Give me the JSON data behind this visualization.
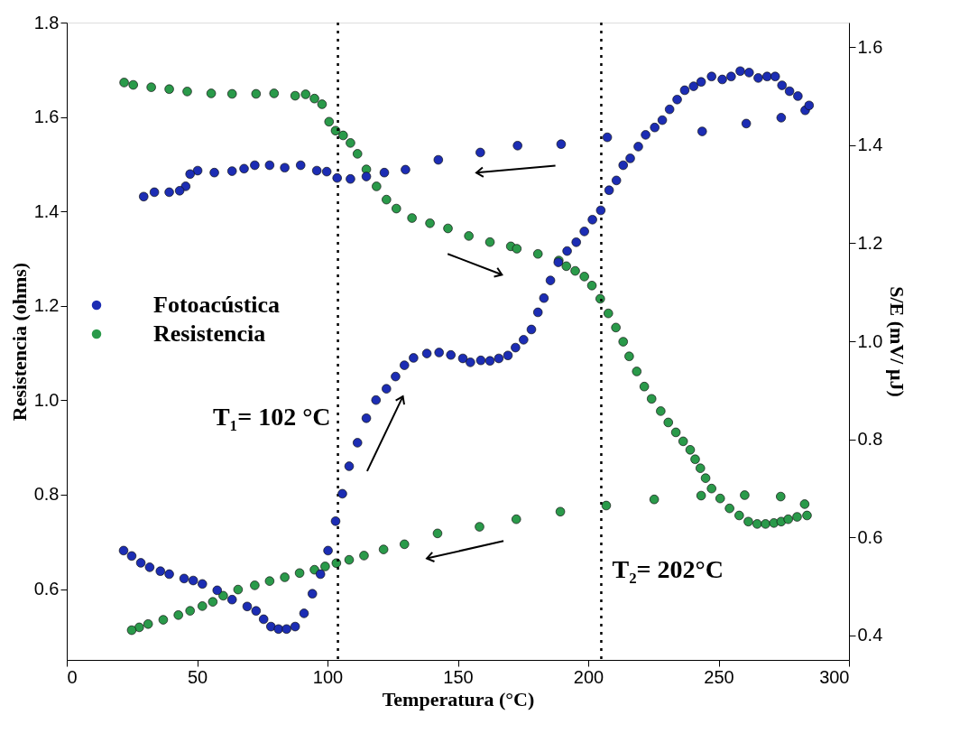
{
  "chart_data": {
    "type": "scatter",
    "xlabel": "Temperatura (°C)",
    "ylabel": "Resistencia (ohms)",
    "y2label": "S/E (mV/ μJ)",
    "xlim": [
      0,
      300
    ],
    "xticks": [
      0,
      50,
      100,
      150,
      200,
      250,
      300
    ],
    "ylim": [
      0.45,
      1.8
    ],
    "yticks": [
      0.6,
      0.8,
      {
        "value": 1,
        "label": "1.0"
      },
      1.2,
      1.4,
      1.6,
      1.8
    ],
    "y2lim": [
      0.35,
      1.65
    ],
    "y2ticks": [
      0.4,
      0.6,
      0.8,
      {
        "value": 1,
        "label": "1.0"
      },
      1.2,
      1.4,
      1.6
    ],
    "grid": false,
    "legend": "left",
    "marker": "circle",
    "series": [
      {
        "name": "Fotoacústica",
        "color": "#1c2db4",
        "axis": "y2",
        "x": [
          21.8,
          24.9,
          28.4,
          31.8,
          35.9,
          39.3,
          45.0,
          48.5,
          52.0,
          57.7,
          63.4,
          69.2,
          72.6,
          75.5,
          78.3,
          81.2,
          84.3,
          87.6,
          91.0,
          94.2,
          97.3,
          100.2,
          103.1,
          105.7,
          108.3,
          111.5,
          114.9,
          118.6,
          122.6,
          126.1,
          129.5,
          133.0,
          138.1,
          142.8,
          147.3,
          151.9,
          154.8,
          158.8,
          162.3,
          165.7,
          169.2,
          172.1,
          175.2,
          178.2,
          180.7,
          183.0,
          185.5,
          188.5,
          191.9,
          195.4,
          198.5,
          201.6,
          204.8,
          208.0,
          210.8,
          213.4,
          216.1,
          219.2,
          222.0,
          225.5,
          228.4,
          231.2,
          234.1,
          237.0,
          240.4,
          243.3,
          247.3,
          251.4,
          254.8,
          258.3,
          261.7,
          265.2,
          268.6,
          271.7,
          274.3,
          277.2,
          280.4,
          283.2,
          284.7,
          274.0,
          260.6,
          243.7,
          207.3,
          189.6,
          172.9,
          158.6,
          142.5,
          129.9,
          121.8,
          114.9,
          108.8,
          103.7,
          99.7,
          95.9,
          89.7,
          83.6,
          77.8,
          72.1,
          68.0,
          63.4,
          56.6,
          50.2,
          47.3,
          45.6,
          43.3,
          39.3,
          33.6,
          29.5
        ],
        "values": [
          0.573,
          0.562,
          0.548,
          0.539,
          0.531,
          0.525,
          0.516,
          0.512,
          0.505,
          0.492,
          0.473,
          0.459,
          0.45,
          0.433,
          0.418,
          0.413,
          0.413,
          0.418,
          0.445,
          0.485,
          0.525,
          0.573,
          0.633,
          0.689,
          0.745,
          0.793,
          0.843,
          0.88,
          0.903,
          0.928,
          0.951,
          0.966,
          0.975,
          0.977,
          0.972,
          0.965,
          0.957,
          0.961,
          0.96,
          0.965,
          0.971,
          0.987,
          1.003,
          1.024,
          1.059,
          1.088,
          1.124,
          1.161,
          1.184,
          1.202,
          1.224,
          1.248,
          1.267,
          1.308,
          1.328,
          1.359,
          1.373,
          1.397,
          1.421,
          1.436,
          1.451,
          1.473,
          1.493,
          1.512,
          1.52,
          1.529,
          1.54,
          1.534,
          1.54,
          1.551,
          1.548,
          1.537,
          1.54,
          1.54,
          1.522,
          1.51,
          1.5,
          1.471,
          1.481,
          1.456,
          1.444,
          1.428,
          1.416,
          1.402,
          1.399,
          1.385,
          1.37,
          1.35,
          1.344,
          1.336,
          1.331,
          1.333,
          1.346,
          1.348,
          1.359,
          1.354,
          1.359,
          1.359,
          1.352,
          1.347,
          1.344,
          1.348,
          1.341,
          1.316,
          1.307,
          1.304,
          1.304,
          1.295
        ]
      },
      {
        "name": "Resistencia",
        "color": "#2a9a4a",
        "axis": "y",
        "x": [
          22.0,
          25.5,
          32.4,
          39.3,
          46.2,
          55.4,
          63.4,
          72.6,
          79.5,
          87.6,
          91.6,
          95.0,
          97.9,
          100.6,
          103.1,
          106.0,
          108.8,
          111.5,
          114.9,
          118.8,
          122.6,
          126.4,
          132.4,
          139.3,
          146.2,
          154.2,
          162.3,
          170.3,
          172.6,
          180.7,
          188.7,
          191.6,
          195.0,
          198.5,
          201.4,
          204.6,
          207.7,
          210.6,
          213.4,
          215.7,
          218.6,
          221.5,
          224.3,
          227.8,
          230.7,
          233.6,
          236.4,
          239.1,
          241.0,
          243.0,
          245.0,
          247.3,
          250.6,
          254.2,
          257.9,
          261.4,
          264.8,
          268.0,
          271.2,
          274.0,
          276.7,
          280.1,
          283.9,
          283.0,
          273.8,
          260.0,
          243.3,
          225.3,
          206.9,
          189.3,
          172.4,
          158.3,
          142.2,
          129.5,
          121.5,
          114.0,
          108.3,
          103.4,
          99.1,
          95.0,
          89.3,
          83.6,
          77.8,
          72.1,
          65.7,
          60.0,
          56.0,
          52.0,
          47.3,
          42.8,
          37.0,
          31.2,
          27.8,
          24.9
        ],
        "values": [
          1.673,
          1.668,
          1.663,
          1.659,
          1.654,
          1.65,
          1.649,
          1.649,
          1.65,
          1.645,
          1.648,
          1.639,
          1.627,
          1.59,
          1.571,
          1.561,
          1.545,
          1.522,
          1.489,
          1.453,
          1.425,
          1.406,
          1.386,
          1.375,
          1.364,
          1.348,
          1.335,
          1.326,
          1.321,
          1.31,
          1.296,
          1.284,
          1.274,
          1.262,
          1.243,
          1.215,
          1.184,
          1.154,
          1.124,
          1.093,
          1.061,
          1.029,
          1.003,
          0.977,
          0.953,
          0.932,
          0.913,
          0.895,
          0.875,
          0.856,
          0.835,
          0.813,
          0.792,
          0.771,
          0.756,
          0.743,
          0.738,
          0.738,
          0.74,
          0.743,
          0.748,
          0.753,
          0.756,
          0.78,
          0.796,
          0.799,
          0.798,
          0.79,
          0.777,
          0.764,
          0.748,
          0.732,
          0.718,
          0.695,
          0.684,
          0.671,
          0.662,
          0.655,
          0.648,
          0.641,
          0.634,
          0.625,
          0.617,
          0.608,
          0.599,
          0.586,
          0.573,
          0.564,
          0.554,
          0.545,
          0.535,
          0.526,
          0.519,
          0.513
        ]
      }
    ],
    "ref_lines": [
      {
        "axis": "x",
        "value": 104,
        "line_style": "dotted",
        "color": "#000000"
      },
      {
        "axis": "x",
        "value": 205,
        "line_style": "dotted",
        "color": "#000000"
      }
    ],
    "annotations": [
      "T₁= 102 °C",
      "T₂= 202°C"
    ]
  }
}
